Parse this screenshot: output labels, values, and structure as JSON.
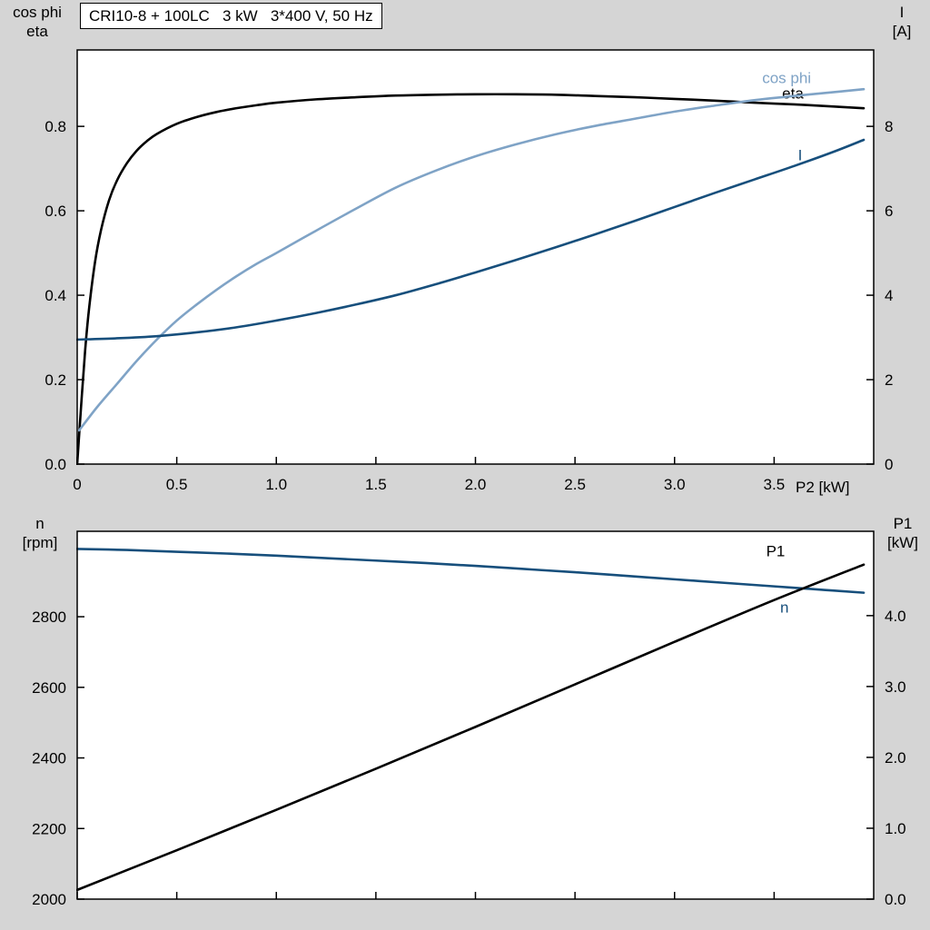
{
  "window": {
    "title": "CRI10-8 + 100LC   3 kW   3*400 V, 50 Hz"
  },
  "colors": {
    "axis": "#000000",
    "black_curve": "#000000",
    "light_blue_curve": "#7fa3c6",
    "dark_blue_curve": "#174f7c",
    "background": "#d5d5d5",
    "plot_background": "#ffffff"
  },
  "axis_corner_labels": {
    "top_left": [
      "cos phi",
      "eta"
    ],
    "top_right": [
      "I",
      "[A]"
    ],
    "bottom_left": [
      "n",
      "[rpm]"
    ],
    "bottom_right": [
      "P1",
      "[kW]"
    ]
  },
  "chart_data": [
    {
      "type": "line",
      "title": "CRI10-8 + 100LC   3 kW   3*400 V, 50 Hz",
      "xlabel": "P2 [kW]",
      "left_axis_label": "cos phi / eta",
      "right_axis_label": "I [A]",
      "grid": false,
      "xlim": [
        0,
        4.0
      ],
      "left_ylim": [
        0,
        0.981
      ],
      "right_ylim": [
        0,
        9.81
      ],
      "xtick_values": [
        0,
        0.5,
        1.0,
        1.5,
        2.0,
        2.5,
        3.0,
        3.5
      ],
      "xtick_labels": [
        "0",
        "0.5",
        "1.0",
        "1.5",
        "2.0",
        "2.5",
        "3.0",
        "3.5"
      ],
      "show_xtick_labels": true,
      "left_tick_values": [
        0.0,
        0.2,
        0.4,
        0.6,
        0.8
      ],
      "left_tick_labels": [
        "0.0",
        "0.2",
        "0.4",
        "0.6",
        "0.8"
      ],
      "right_tick_values": [
        0,
        2,
        4,
        6,
        8
      ],
      "right_tick_labels": [
        "0",
        "2",
        "4",
        "6",
        "8"
      ],
      "series": [
        {
          "name": "eta",
          "label": "eta",
          "axis": "left",
          "color": "#000000",
          "label_pos": [
            3.54,
            0.866
          ],
          "x": [
            0,
            0.02,
            0.04,
            0.06,
            0.09,
            0.12,
            0.16,
            0.2,
            0.25,
            0.3,
            0.35,
            0.4,
            0.5,
            0.6,
            0.7,
            0.8,
            0.9,
            1.0,
            1.2,
            1.4,
            1.6,
            1.8,
            2.0,
            2.2,
            2.4,
            2.6,
            2.8,
            3.0,
            3.2,
            3.4,
            3.6,
            3.8,
            3.95
          ],
          "y": [
            0,
            0.14,
            0.27,
            0.37,
            0.48,
            0.555,
            0.625,
            0.672,
            0.713,
            0.743,
            0.765,
            0.782,
            0.806,
            0.822,
            0.834,
            0.843,
            0.85,
            0.856,
            0.864,
            0.869,
            0.873,
            0.875,
            0.876,
            0.876,
            0.875,
            0.872,
            0.869,
            0.865,
            0.861,
            0.856,
            0.852,
            0.847,
            0.843
          ]
        },
        {
          "name": "cos-phi",
          "label": "cos phi",
          "axis": "left",
          "color": "#7fa3c6",
          "label_pos": [
            3.44,
            0.903
          ],
          "x": [
            0.01,
            0.1,
            0.2,
            0.3,
            0.4,
            0.5,
            0.6,
            0.7,
            0.8,
            0.9,
            1.0,
            1.2,
            1.4,
            1.6,
            1.8,
            2.0,
            2.2,
            2.4,
            2.6,
            2.8,
            3.0,
            3.2,
            3.4,
            3.6,
            3.8,
            3.95
          ],
          "y": [
            0.08,
            0.135,
            0.19,
            0.245,
            0.295,
            0.34,
            0.378,
            0.413,
            0.445,
            0.474,
            0.5,
            0.553,
            0.605,
            0.655,
            0.695,
            0.729,
            0.757,
            0.781,
            0.801,
            0.818,
            0.835,
            0.849,
            0.862,
            0.872,
            0.881,
            0.888
          ]
        },
        {
          "name": "I",
          "label": "I",
          "axis": "right",
          "color": "#174f7c",
          "label_pos": [
            3.62,
            7.2
          ],
          "x": [
            0,
            0.2,
            0.4,
            0.6,
            0.8,
            1.0,
            1.2,
            1.4,
            1.6,
            1.8,
            2.0,
            2.2,
            2.4,
            2.6,
            2.8,
            3.0,
            3.2,
            3.4,
            3.6,
            3.8,
            3.95
          ],
          "y": [
            2.95,
            2.98,
            3.03,
            3.12,
            3.24,
            3.4,
            3.58,
            3.78,
            4.0,
            4.26,
            4.54,
            4.83,
            5.13,
            5.44,
            5.76,
            6.09,
            6.42,
            6.74,
            7.06,
            7.4,
            7.68
          ]
        }
      ]
    },
    {
      "type": "line",
      "title": "",
      "xlabel": "",
      "left_axis_label": "n [rpm]",
      "right_axis_label": "P1 [kW]",
      "grid": false,
      "xlim": [
        0,
        4.0
      ],
      "left_ylim": [
        2000,
        3042
      ],
      "right_ylim": [
        0,
        5.19
      ],
      "xtick_values": [
        0,
        0.5,
        1.0,
        1.5,
        2.0,
        2.5,
        3.0,
        3.5
      ],
      "xtick_labels": [
        "",
        "",
        "",
        "",
        "",
        "",
        "",
        ""
      ],
      "show_xtick_labels": false,
      "left_tick_values": [
        2000,
        2200,
        2400,
        2600,
        2800
      ],
      "left_tick_labels": [
        "2000",
        "2200",
        "2400",
        "2600",
        "2800"
      ],
      "right_tick_values": [
        0,
        1,
        2,
        3,
        4
      ],
      "right_tick_labels": [
        "0.0",
        "1.0",
        "2.0",
        "3.0",
        "4.0"
      ],
      "series": [
        {
          "name": "n",
          "label": "n",
          "axis": "left",
          "color": "#174f7c",
          "label_pos": [
            3.53,
            2812
          ],
          "x": [
            0,
            0.25,
            0.5,
            0.75,
            1.0,
            1.25,
            1.5,
            1.75,
            2.0,
            2.25,
            2.5,
            2.75,
            3.0,
            3.25,
            3.5,
            3.75,
            3.95
          ],
          "y": [
            2992,
            2989,
            2984,
            2979,
            2973,
            2966,
            2959,
            2952,
            2944,
            2935,
            2926,
            2916,
            2906,
            2896,
            2886,
            2876,
            2868
          ]
        },
        {
          "name": "P1",
          "label": "P1",
          "axis": "right",
          "color": "#000000",
          "label_pos": [
            3.46,
            4.84
          ],
          "x": [
            0,
            0.5,
            1.0,
            1.5,
            2.0,
            2.5,
            3.0,
            3.5,
            3.95
          ],
          "y": [
            0.13,
            0.69,
            1.26,
            1.84,
            2.43,
            3.03,
            3.63,
            4.22,
            4.72
          ]
        }
      ]
    }
  ]
}
